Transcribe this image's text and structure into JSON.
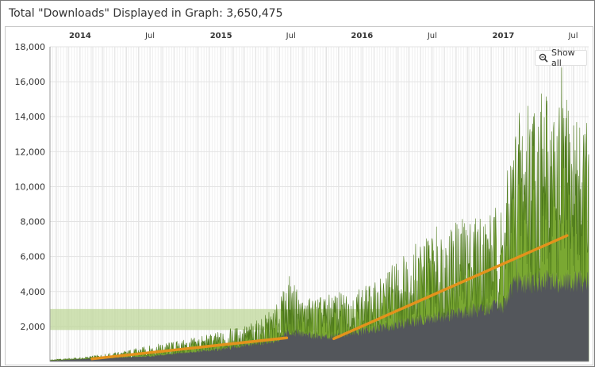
{
  "header": {
    "title": "Total \"Downloads\" Displayed in Graph: 3,650,475"
  },
  "controls": {
    "show_all_label": "Show all",
    "show_all_icon": "zoom-icon"
  },
  "colors": {
    "daily_fill": "#7aa832",
    "daily_stroke": "#4e7a1c",
    "baseline_fill": "#4f4f5e",
    "trend": "#e3921c",
    "band": "#bfd79a",
    "grid": "#e3e3e3",
    "minor_grid": "#f0f0f0"
  },
  "chart_data": {
    "type": "area",
    "title": "Total \"Downloads\" Displayed in Graph: 3,650,475",
    "xlabel": "",
    "ylabel": "",
    "ylim": [
      0,
      18000
    ],
    "yticks": [
      "2,000",
      "4,000",
      "6,000",
      "8,000",
      "10,000",
      "12,000",
      "14,000",
      "16,000",
      "18,000"
    ],
    "xlim": [
      "2013-10-15",
      "2017-08-10"
    ],
    "xticks": [
      {
        "date": "2014-01-01",
        "label": "2014",
        "major": true
      },
      {
        "date": "2014-07-01",
        "label": "Jul",
        "major": false
      },
      {
        "date": "2015-01-01",
        "label": "2015",
        "major": true
      },
      {
        "date": "2015-07-01",
        "label": "Jul",
        "major": false
      },
      {
        "date": "2016-01-01",
        "label": "2016",
        "major": true
      },
      {
        "date": "2016-07-01",
        "label": "Jul",
        "major": false
      },
      {
        "date": "2017-01-01",
        "label": "2017",
        "major": true
      },
      {
        "date": "2017-07-01",
        "label": "Jul",
        "major": false
      }
    ],
    "grid": true,
    "band": {
      "y_from": 1800,
      "y_to": 3000
    },
    "series": [
      {
        "style": "area",
        "x": [
          "2013-10-15",
          "2014-01-01",
          "2014-04-01",
          "2014-07-01",
          "2014-10-01",
          "2015-01-01",
          "2015-04-01",
          "2015-05-15",
          "2015-06-01",
          "2015-06-25",
          "2015-08-01",
          "2015-10-01",
          "2015-12-01",
          "2016-02-01",
          "2016-04-01",
          "2016-07-01",
          "2016-10-01",
          "2017-01-01",
          "2017-02-01",
          "2017-03-15",
          "2017-05-01",
          "2017-06-15",
          "2017-08-10"
        ],
        "y": [
          100,
          200,
          450,
          800,
          1100,
          1500,
          2000,
          2600,
          3000,
          4300,
          3200,
          3300,
          3600,
          3900,
          5200,
          6700,
          7300,
          7900,
          12500,
          13800,
          13300,
          13000,
          12200
        ]
      },
      {
        "style": "area",
        "x": [
          "2013-10-15",
          "2014-07-01",
          "2015-01-01",
          "2015-06-01",
          "2015-06-25",
          "2015-10-01",
          "2016-01-01",
          "2016-07-01",
          "2017-01-01",
          "2017-02-01",
          "2017-08-10"
        ],
        "y": [
          50,
          300,
          700,
          1200,
          1700,
          1400,
          1700,
          2500,
          3200,
          4500,
          4600
        ]
      },
      {
        "style": "line",
        "x": [
          "2014-02-01",
          "2015-06-20"
        ],
        "y": [
          150,
          1350
        ]
      },
      {
        "style": "line",
        "x": [
          "2015-10-20",
          "2017-06-15"
        ],
        "y": [
          1300,
          7200
        ]
      }
    ],
    "peak": {
      "x": "2017-06-01",
      "y": 16800
    }
  }
}
